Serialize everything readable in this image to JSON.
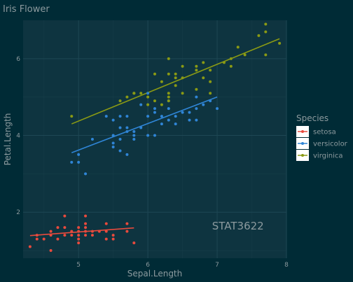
{
  "chart_data": {
    "type": "scatter",
    "title": "Iris Flower",
    "xlabel": "Sepal.Length",
    "ylabel": "Petal.Length",
    "xlim": [
      4.2,
      8.0
    ],
    "ylim": [
      0.8,
      7.0
    ],
    "x_ticks": [
      5,
      6,
      7,
      8
    ],
    "y_ticks": [
      2,
      4,
      6
    ],
    "grid": true,
    "legend": {
      "title": "Species",
      "placement": "right"
    },
    "annotation": {
      "text": "STAT3622",
      "x": 7.3,
      "y": 1.55
    },
    "series": [
      {
        "name": "setosa",
        "color": "#E84A3D",
        "points": [
          [
            4.3,
            1.1
          ],
          [
            4.4,
            1.3
          ],
          [
            4.4,
            1.4
          ],
          [
            4.5,
            1.3
          ],
          [
            4.6,
            1.4
          ],
          [
            4.6,
            1.5
          ],
          [
            4.6,
            1.0
          ],
          [
            4.7,
            1.3
          ],
          [
            4.7,
            1.6
          ],
          [
            4.8,
            1.4
          ],
          [
            4.8,
            1.6
          ],
          [
            4.8,
            1.9
          ],
          [
            4.9,
            1.4
          ],
          [
            4.9,
            1.5
          ],
          [
            5.0,
            1.4
          ],
          [
            5.0,
            1.5
          ],
          [
            5.0,
            1.6
          ],
          [
            5.0,
            1.2
          ],
          [
            5.0,
            1.3
          ],
          [
            5.1,
            1.4
          ],
          [
            5.1,
            1.5
          ],
          [
            5.1,
            1.7
          ],
          [
            5.1,
            1.9
          ],
          [
            5.1,
            1.6
          ],
          [
            5.2,
            1.4
          ],
          [
            5.2,
            1.5
          ],
          [
            5.3,
            1.5
          ],
          [
            5.4,
            1.3
          ],
          [
            5.4,
            1.5
          ],
          [
            5.4,
            1.7
          ],
          [
            5.5,
            1.3
          ],
          [
            5.5,
            1.4
          ],
          [
            5.7,
            1.5
          ],
          [
            5.7,
            1.7
          ],
          [
            5.8,
            1.2
          ]
        ],
        "trend": [
          [
            4.3,
            1.39
          ],
          [
            5.8,
            1.59
          ]
        ]
      },
      {
        "name": "versicolor",
        "color": "#2F85D6",
        "points": [
          [
            4.9,
            3.3
          ],
          [
            5.0,
            3.3
          ],
          [
            5.0,
            3.5
          ],
          [
            5.1,
            3.0
          ],
          [
            5.2,
            3.9
          ],
          [
            5.4,
            4.5
          ],
          [
            5.5,
            3.7
          ],
          [
            5.5,
            3.8
          ],
          [
            5.5,
            4.0
          ],
          [
            5.5,
            4.4
          ],
          [
            5.6,
            3.6
          ],
          [
            5.6,
            3.9
          ],
          [
            5.6,
            4.2
          ],
          [
            5.6,
            4.5
          ],
          [
            5.7,
            3.5
          ],
          [
            5.7,
            4.1
          ],
          [
            5.7,
            4.2
          ],
          [
            5.7,
            4.5
          ],
          [
            5.8,
            3.9
          ],
          [
            5.8,
            4.0
          ],
          [
            5.8,
            4.1
          ],
          [
            5.9,
            4.2
          ],
          [
            5.9,
            4.8
          ],
          [
            6.0,
            4.0
          ],
          [
            6.0,
            4.5
          ],
          [
            6.0,
            5.1
          ],
          [
            6.1,
            4.0
          ],
          [
            6.1,
            4.6
          ],
          [
            6.1,
            4.7
          ],
          [
            6.2,
            4.3
          ],
          [
            6.2,
            4.5
          ],
          [
            6.3,
            4.4
          ],
          [
            6.3,
            4.7
          ],
          [
            6.3,
            4.9
          ],
          [
            6.4,
            4.3
          ],
          [
            6.4,
            4.5
          ],
          [
            6.5,
            4.6
          ],
          [
            6.6,
            4.4
          ],
          [
            6.6,
            4.6
          ],
          [
            6.7,
            4.4
          ],
          [
            6.7,
            4.7
          ],
          [
            6.7,
            5.0
          ],
          [
            6.8,
            4.8
          ],
          [
            6.9,
            4.9
          ],
          [
            7.0,
            4.7
          ]
        ],
        "trend": [
          [
            4.9,
            3.55
          ],
          [
            7.0,
            5.0
          ]
        ]
      },
      {
        "name": "virginica",
        "color": "#8A9A14",
        "points": [
          [
            4.9,
            4.5
          ],
          [
            5.6,
            4.9
          ],
          [
            5.7,
            5.0
          ],
          [
            5.8,
            5.1
          ],
          [
            5.8,
            5.1
          ],
          [
            5.9,
            5.1
          ],
          [
            6.0,
            4.8
          ],
          [
            6.0,
            5.0
          ],
          [
            6.1,
            4.9
          ],
          [
            6.1,
            5.6
          ],
          [
            6.2,
            4.8
          ],
          [
            6.2,
            5.4
          ],
          [
            6.3,
            4.9
          ],
          [
            6.3,
            5.0
          ],
          [
            6.3,
            5.1
          ],
          [
            6.3,
            5.6
          ],
          [
            6.3,
            6.0
          ],
          [
            6.4,
            5.3
          ],
          [
            6.4,
            5.5
          ],
          [
            6.4,
            5.6
          ],
          [
            6.5,
            5.1
          ],
          [
            6.5,
            5.5
          ],
          [
            6.5,
            5.8
          ],
          [
            6.7,
            5.2
          ],
          [
            6.7,
            5.7
          ],
          [
            6.7,
            5.8
          ],
          [
            6.8,
            5.5
          ],
          [
            6.8,
            5.9
          ],
          [
            6.9,
            5.1
          ],
          [
            6.9,
            5.4
          ],
          [
            6.9,
            5.7
          ],
          [
            7.1,
            5.9
          ],
          [
            7.2,
            5.8
          ],
          [
            7.2,
            6.0
          ],
          [
            7.3,
            6.3
          ],
          [
            7.4,
            6.1
          ],
          [
            7.6,
            6.6
          ],
          [
            7.7,
            6.1
          ],
          [
            7.7,
            6.7
          ],
          [
            7.7,
            6.9
          ],
          [
            7.9,
            6.4
          ]
        ],
        "trend": [
          [
            4.9,
            4.3
          ],
          [
            7.9,
            6.52
          ]
        ]
      }
    ]
  }
}
